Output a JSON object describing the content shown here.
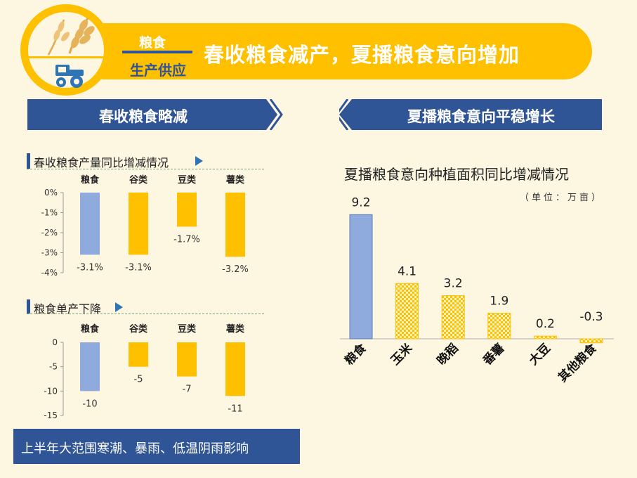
{
  "header": {
    "tag": "粮食",
    "subtag": "生产供应",
    "title": "春收粮食减产，夏播粮食意向增加"
  },
  "left": {
    "banner": "春收粮食略减",
    "footer": "上半年大范围寒潮、暴雨、低温阴雨影响"
  },
  "right": {
    "banner": "夏播粮食意向平稳增长"
  },
  "colors": {
    "yellow": "#ffc000",
    "blue_bar": "#8faadc",
    "navy": "#2f5597",
    "cream": "#fdf6e1"
  },
  "chart_data": [
    {
      "type": "bar",
      "title": "春收粮食产量同比增减情况",
      "categories": [
        "粮食",
        "谷类",
        "豆类",
        "薯类"
      ],
      "values": [
        -3.1,
        -3.1,
        -1.7,
        -3.2
      ],
      "value_labels": [
        "-3.1%",
        "-3.1%",
        "-1.7%",
        "-3.2%"
      ],
      "ylim": [
        -4,
        0
      ],
      "yticks": [
        0,
        -1,
        -2,
        -3,
        -4
      ],
      "ytick_labels": [
        "0%",
        "-1%",
        "-2%",
        "-3%",
        "-4%"
      ]
    },
    {
      "type": "bar",
      "title": "粮食单产下降",
      "categories": [
        "粮食",
        "谷类",
        "豆类",
        "薯类"
      ],
      "values": [
        -10,
        -5,
        -7,
        -11
      ],
      "value_labels": [
        "-10",
        "-5",
        "-7",
        "-11"
      ],
      "ylim": [
        -15,
        0
      ],
      "yticks": [
        0,
        -5,
        -10,
        -15
      ],
      "ytick_labels": [
        "0",
        "-5",
        "-10",
        "-15"
      ]
    },
    {
      "type": "bar",
      "title": "夏播粮食意向种植面积同比增减情况",
      "unit": "（单位：万亩）",
      "categories": [
        "粮食",
        "玉米",
        "晚稻",
        "番薯",
        "大豆",
        "其他粮食"
      ],
      "values": [
        9.2,
        4.1,
        3.2,
        1.9,
        0.2,
        -0.3
      ],
      "value_labels": [
        "9.2",
        "4.1",
        "3.2",
        "1.9",
        "0.2",
        "-0.3"
      ]
    }
  ]
}
